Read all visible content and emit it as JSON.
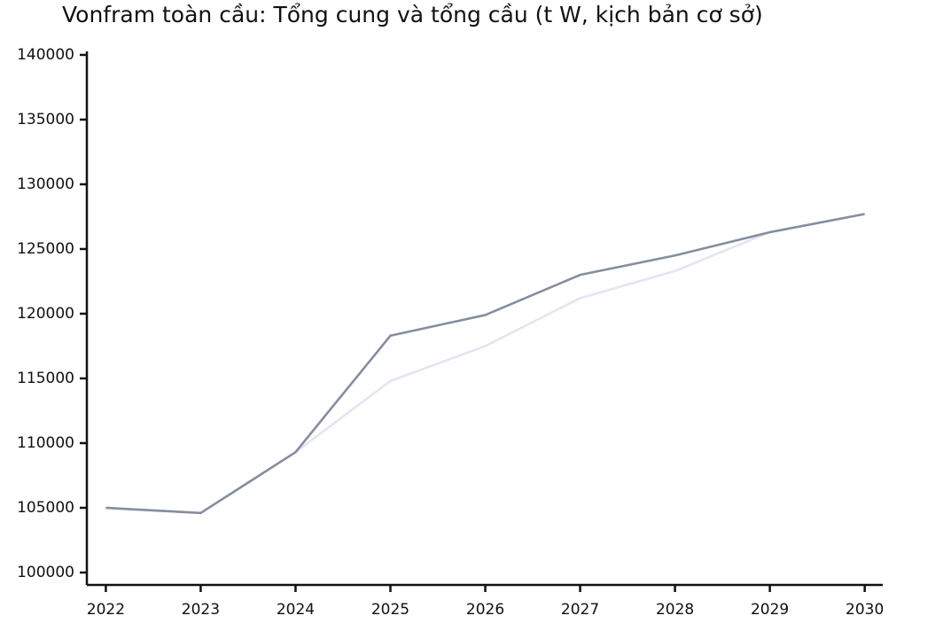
{
  "chart_data": {
    "type": "line",
    "title": "Vonfram toàn cầu: Tổng cung và tổng cầu (t W, kịch bản cơ sở)",
    "x": [
      2022,
      2023,
      2024,
      2025,
      2026,
      2027,
      2028,
      2029,
      2030
    ],
    "series": [
      {
        "color": "#e4e4f4",
        "values": [
          105000,
          104600,
          109300,
          114800,
          117500,
          121200,
          123300,
          126300,
          127700
        ]
      },
      {
        "color": "#848e9e",
        "values": [
          105000,
          104600,
          109300,
          118300,
          119900,
          123000,
          124500,
          126300,
          127700
        ]
      }
    ],
    "xlim": [
      2021.8,
      2030.19
    ],
    "xticks": [
      2022,
      2023,
      2024,
      2025,
      2026,
      2027,
      2028,
      2029,
      2030
    ],
    "ylim": [
      99040,
      140270
    ],
    "yticks": [
      100000,
      105000,
      110000,
      115000,
      120000,
      125000,
      130000,
      135000,
      140000
    ],
    "grid": false
  }
}
